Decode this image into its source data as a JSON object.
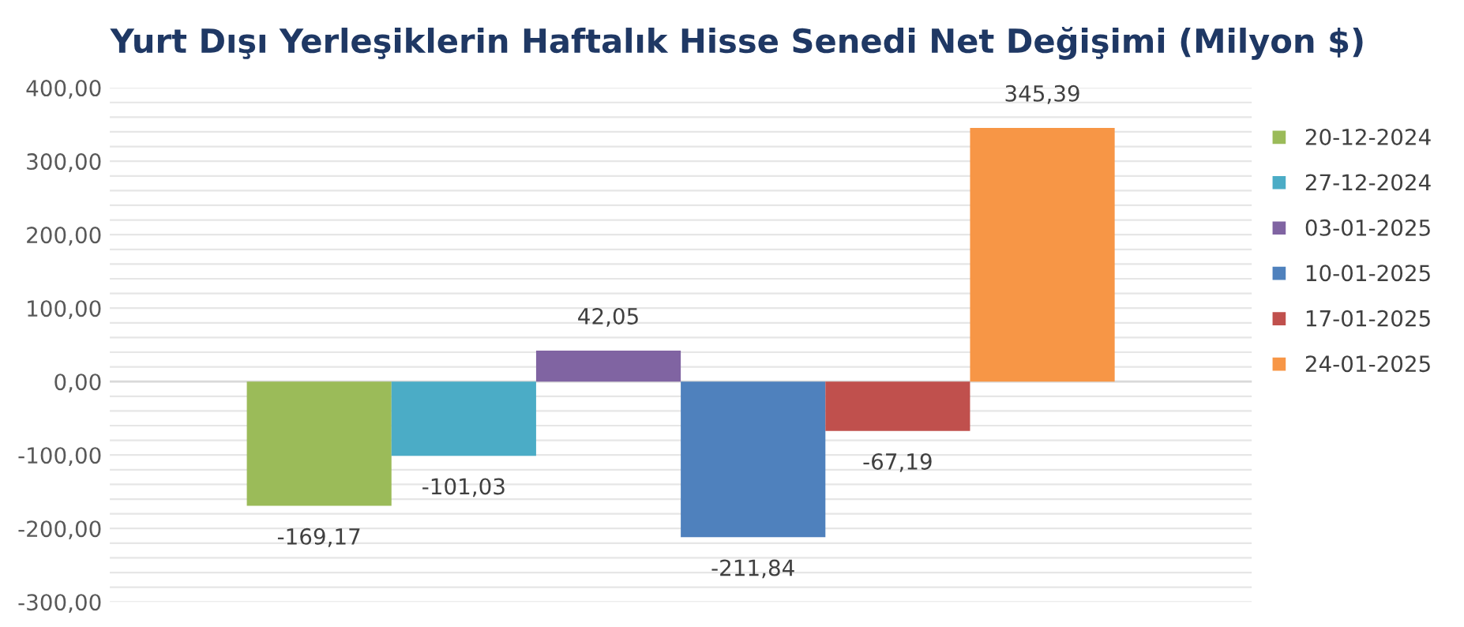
{
  "chart_data": {
    "type": "bar",
    "title": "Yurt Dışı Yerleşiklerin Haftalık Hisse Senedi Net Değişimi (Milyon $)",
    "categories": [
      null
    ],
    "series": [
      {
        "name": "20-12-2024",
        "color": "#9bbb59",
        "values": [
          -169.17
        ],
        "value_labels": [
          "-169,17"
        ]
      },
      {
        "name": "27-12-2024",
        "color": "#4bacc6",
        "values": [
          -101.03
        ],
        "value_labels": [
          "-101,03"
        ]
      },
      {
        "name": "03-01-2025",
        "color": "#8064a2",
        "values": [
          42.05
        ],
        "value_labels": [
          "42,05"
        ]
      },
      {
        "name": "10-01-2025",
        "color": "#4f81bd",
        "values": [
          -211.84
        ],
        "value_labels": [
          "-211,84"
        ]
      },
      {
        "name": "17-01-2025",
        "color": "#c0504d",
        "values": [
          -67.19
        ],
        "value_labels": [
          "-67,19"
        ]
      },
      {
        "name": "24-01-2025",
        "color": "#f79646",
        "values": [
          345.39
        ],
        "value_labels": [
          "345,39"
        ]
      }
    ],
    "ylim": [
      -300,
      400
    ],
    "yticks": [
      {
        "value": -300,
        "label": "-300,00"
      },
      {
        "value": -280,
        "label": null
      },
      {
        "value": -260,
        "label": null
      },
      {
        "value": -240,
        "label": null
      },
      {
        "value": -220,
        "label": null
      },
      {
        "value": -200,
        "label": "-200,00"
      },
      {
        "value": -180,
        "label": null
      },
      {
        "value": -160,
        "label": null
      },
      {
        "value": -140,
        "label": null
      },
      {
        "value": -120,
        "label": null
      },
      {
        "value": -100,
        "label": "-100,00"
      },
      {
        "value": -80,
        "label": null
      },
      {
        "value": -60,
        "label": null
      },
      {
        "value": -40,
        "label": null
      },
      {
        "value": -20,
        "label": null
      },
      {
        "value": 0,
        "label": "0,00"
      },
      {
        "value": 20,
        "label": null
      },
      {
        "value": 40,
        "label": null
      },
      {
        "value": 60,
        "label": null
      },
      {
        "value": 80,
        "label": null
      },
      {
        "value": 100,
        "label": "100,00"
      },
      {
        "value": 120,
        "label": null
      },
      {
        "value": 140,
        "label": null
      },
      {
        "value": 160,
        "label": null
      },
      {
        "value": 180,
        "label": null
      },
      {
        "value": 200,
        "label": "200,00"
      },
      {
        "value": 220,
        "label": null
      },
      {
        "value": 240,
        "label": null
      },
      {
        "value": 260,
        "label": null
      },
      {
        "value": 280,
        "label": null
      },
      {
        "value": 300,
        "label": "300,00"
      },
      {
        "value": 320,
        "label": null
      },
      {
        "value": 340,
        "label": null
      },
      {
        "value": 360,
        "label": null
      },
      {
        "value": 380,
        "label": null
      },
      {
        "value": 400,
        "label": "400,00"
      }
    ],
    "grid": "y",
    "legend": "right"
  }
}
